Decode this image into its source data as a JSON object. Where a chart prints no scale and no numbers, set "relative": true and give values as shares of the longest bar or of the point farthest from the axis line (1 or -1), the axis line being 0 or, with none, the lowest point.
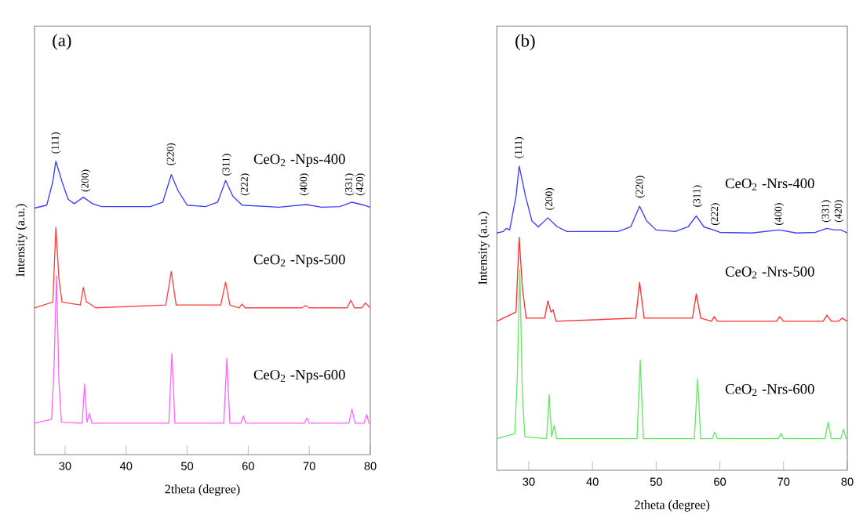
{
  "chart_data": [
    {
      "type": "line",
      "title": "(a)",
      "xlabel": "2theta (degree)",
      "ylabel": "Intensity (a.u.)",
      "relative": true,
      "tick_labels": "x",
      "grid": false,
      "legend": false,
      "line_style": "solid",
      "xlim": [
        25,
        80
      ],
      "xticks": [
        30,
        40,
        50,
        60,
        70,
        80
      ],
      "series": [
        {
          "name": "CeO$_{2}$ -Nps-400",
          "color": "#3c3cff",
          "x": [
            25,
            27,
            28,
            28.5,
            29.5,
            30.5,
            31.5,
            33,
            34.5,
            36,
            44,
            46,
            47.4,
            48.5,
            50,
            53,
            55,
            56.3,
            57.5,
            59,
            65,
            69.5,
            72,
            75,
            77,
            79,
            80
          ],
          "values": [
            0.84,
            0.85,
            0.93,
            1.0,
            0.93,
            0.87,
            0.855,
            0.877,
            0.855,
            0.845,
            0.845,
            0.86,
            0.954,
            0.9,
            0.85,
            0.845,
            0.86,
            0.934,
            0.88,
            0.85,
            0.843,
            0.852,
            0.843,
            0.845,
            0.86,
            0.85,
            0.842
          ]
        },
        {
          "name": "CeO$_{2}$ -Nps-500",
          "color": "#ff4040",
          "x": [
            25,
            28,
            28.5,
            29,
            29.5,
            32.5,
            33,
            33.5,
            34,
            35,
            46.5,
            47.4,
            48.2,
            55.5,
            56.3,
            57,
            58.5,
            59,
            59.5,
            68.8,
            69.4,
            70,
            76.2,
            76.8,
            77.4,
            78.6,
            79.2,
            80
          ],
          "values": [
            0.5,
            0.52,
            0.775,
            0.6,
            0.52,
            0.51,
            0.57,
            0.52,
            0.515,
            0.5,
            0.51,
            0.624,
            0.51,
            0.51,
            0.588,
            0.51,
            0.5,
            0.513,
            0.5,
            0.5,
            0.508,
            0.5,
            0.5,
            0.526,
            0.5,
            0.5,
            0.517,
            0.5
          ]
        },
        {
          "name": "CeO$_{2}$ -Nps-600",
          "color": "#ff66ff",
          "x": [
            25,
            27.8,
            28.2,
            28.6,
            29,
            29.4,
            32.8,
            33.2,
            33.6,
            34,
            34.4,
            47,
            47.5,
            48,
            56,
            56.5,
            57,
            58.8,
            59.2,
            59.6,
            69.2,
            69.6,
            70,
            76.5,
            77,
            77.5,
            79,
            79.4,
            79.8,
            80
          ],
          "values": [
            0.107,
            0.12,
            0.3,
            0.61,
            0.25,
            0.11,
            0.107,
            0.24,
            0.11,
            0.14,
            0.107,
            0.107,
            0.344,
            0.107,
            0.107,
            0.328,
            0.107,
            0.107,
            0.132,
            0.107,
            0.107,
            0.125,
            0.107,
            0.107,
            0.155,
            0.107,
            0.107,
            0.137,
            0.107,
            0.107
          ]
        }
      ],
      "annotations": [
        {
          "text": "(111)",
          "x": 28.5,
          "y": 1.02
        },
        {
          "text": "(200)",
          "x": 33.4,
          "y": 0.89
        },
        {
          "text": "(220)",
          "x": 47.4,
          "y": 0.98
        },
        {
          "text": "(311)",
          "x": 56.5,
          "y": 0.945
        },
        {
          "text": "(222)",
          "x": 59.5,
          "y": 0.877
        },
        {
          "text": "(400)",
          "x": 69.2,
          "y": 0.877
        },
        {
          "text": "(331)",
          "x": 76.6,
          "y": 0.877
        },
        {
          "text": "(420)",
          "x": 78.4,
          "y": 0.877
        }
      ]
    },
    {
      "type": "line",
      "title": "(b)",
      "xlabel": "2theta (degree)",
      "ylabel": "Intensity (a.u.)",
      "relative": true,
      "tick_labels": "x",
      "grid": false,
      "legend": false,
      "line_style": "solid",
      "xlim": [
        25,
        80
      ],
      "xticks": [
        30,
        40,
        50,
        60,
        70,
        80
      ],
      "series": [
        {
          "name": "CeO$_{2}$ -Nrs-400",
          "color": "#3c3cff",
          "x": [
            25,
            26,
            26.5,
            27,
            28,
            28.5,
            29.5,
            30.5,
            31.5,
            33,
            34.5,
            36,
            44,
            46,
            47.4,
            48.5,
            50,
            53,
            55,
            56.3,
            57.5,
            59,
            60,
            65,
            69.3,
            72,
            75,
            76.8,
            78,
            79,
            80
          ],
          "values": [
            0.78,
            0.785,
            0.795,
            0.79,
            0.9,
            1.0,
            0.9,
            0.82,
            0.8,
            0.83,
            0.8,
            0.785,
            0.785,
            0.8,
            0.868,
            0.82,
            0.79,
            0.785,
            0.8,
            0.836,
            0.8,
            0.79,
            0.782,
            0.78,
            0.79,
            0.78,
            0.782,
            0.795,
            0.79,
            0.79,
            0.78
          ]
        },
        {
          "name": "CeO$_{2}$ -Nrs-500",
          "color": "#ff3030",
          "x": [
            25,
            28,
            28.5,
            29,
            29.6,
            32.5,
            33,
            33.5,
            33.8,
            34.3,
            46.8,
            47.4,
            48.1,
            55.7,
            56.3,
            57,
            58.7,
            59.1,
            59.6,
            68.9,
            69.4,
            70,
            76.2,
            76.8,
            77.5,
            78.6,
            79.2,
            80
          ],
          "values": [
            0.49,
            0.52,
            0.766,
            0.6,
            0.5,
            0.5,
            0.557,
            0.52,
            0.528,
            0.49,
            0.5,
            0.618,
            0.5,
            0.5,
            0.58,
            0.5,
            0.49,
            0.505,
            0.49,
            0.49,
            0.505,
            0.49,
            0.49,
            0.51,
            0.49,
            0.49,
            0.5,
            0.49
          ]
        },
        {
          "name": "CeO$_{2}$ -Nrs-600",
          "color": "#66e866",
          "x": [
            25,
            27.8,
            28.2,
            28.6,
            29,
            29.4,
            32.8,
            33.2,
            33.6,
            34,
            34.4,
            47,
            47.5,
            48,
            56,
            56.5,
            57,
            58.8,
            59.2,
            59.6,
            69.2,
            69.6,
            70,
            76.5,
            77,
            77.5,
            79,
            79.4,
            79.8,
            80
          ],
          "values": [
            0.104,
            0.12,
            0.3,
            0.66,
            0.25,
            0.11,
            0.104,
            0.249,
            0.11,
            0.147,
            0.104,
            0.104,
            0.363,
            0.104,
            0.104,
            0.301,
            0.104,
            0.104,
            0.126,
            0.104,
            0.104,
            0.121,
            0.104,
            0.104,
            0.159,
            0.104,
            0.104,
            0.135,
            0.104,
            0.104
          ]
        }
      ],
      "annotations": [
        {
          "text": "(111)",
          "x": 28.5,
          "y": 1.02
        },
        {
          "text": "(200)",
          "x": 33.3,
          "y": 0.85
        },
        {
          "text": "(220)",
          "x": 47.5,
          "y": 0.89
        },
        {
          "text": "(311)",
          "x": 56.5,
          "y": 0.86
        },
        {
          "text": "(222)",
          "x": 59.3,
          "y": 0.8
        },
        {
          "text": "(400)",
          "x": 69.3,
          "y": 0.8
        },
        {
          "text": "(331)",
          "x": 76.7,
          "y": 0.81
        },
        {
          "text": "(420)",
          "x": 78.7,
          "y": 0.81
        }
      ]
    }
  ]
}
